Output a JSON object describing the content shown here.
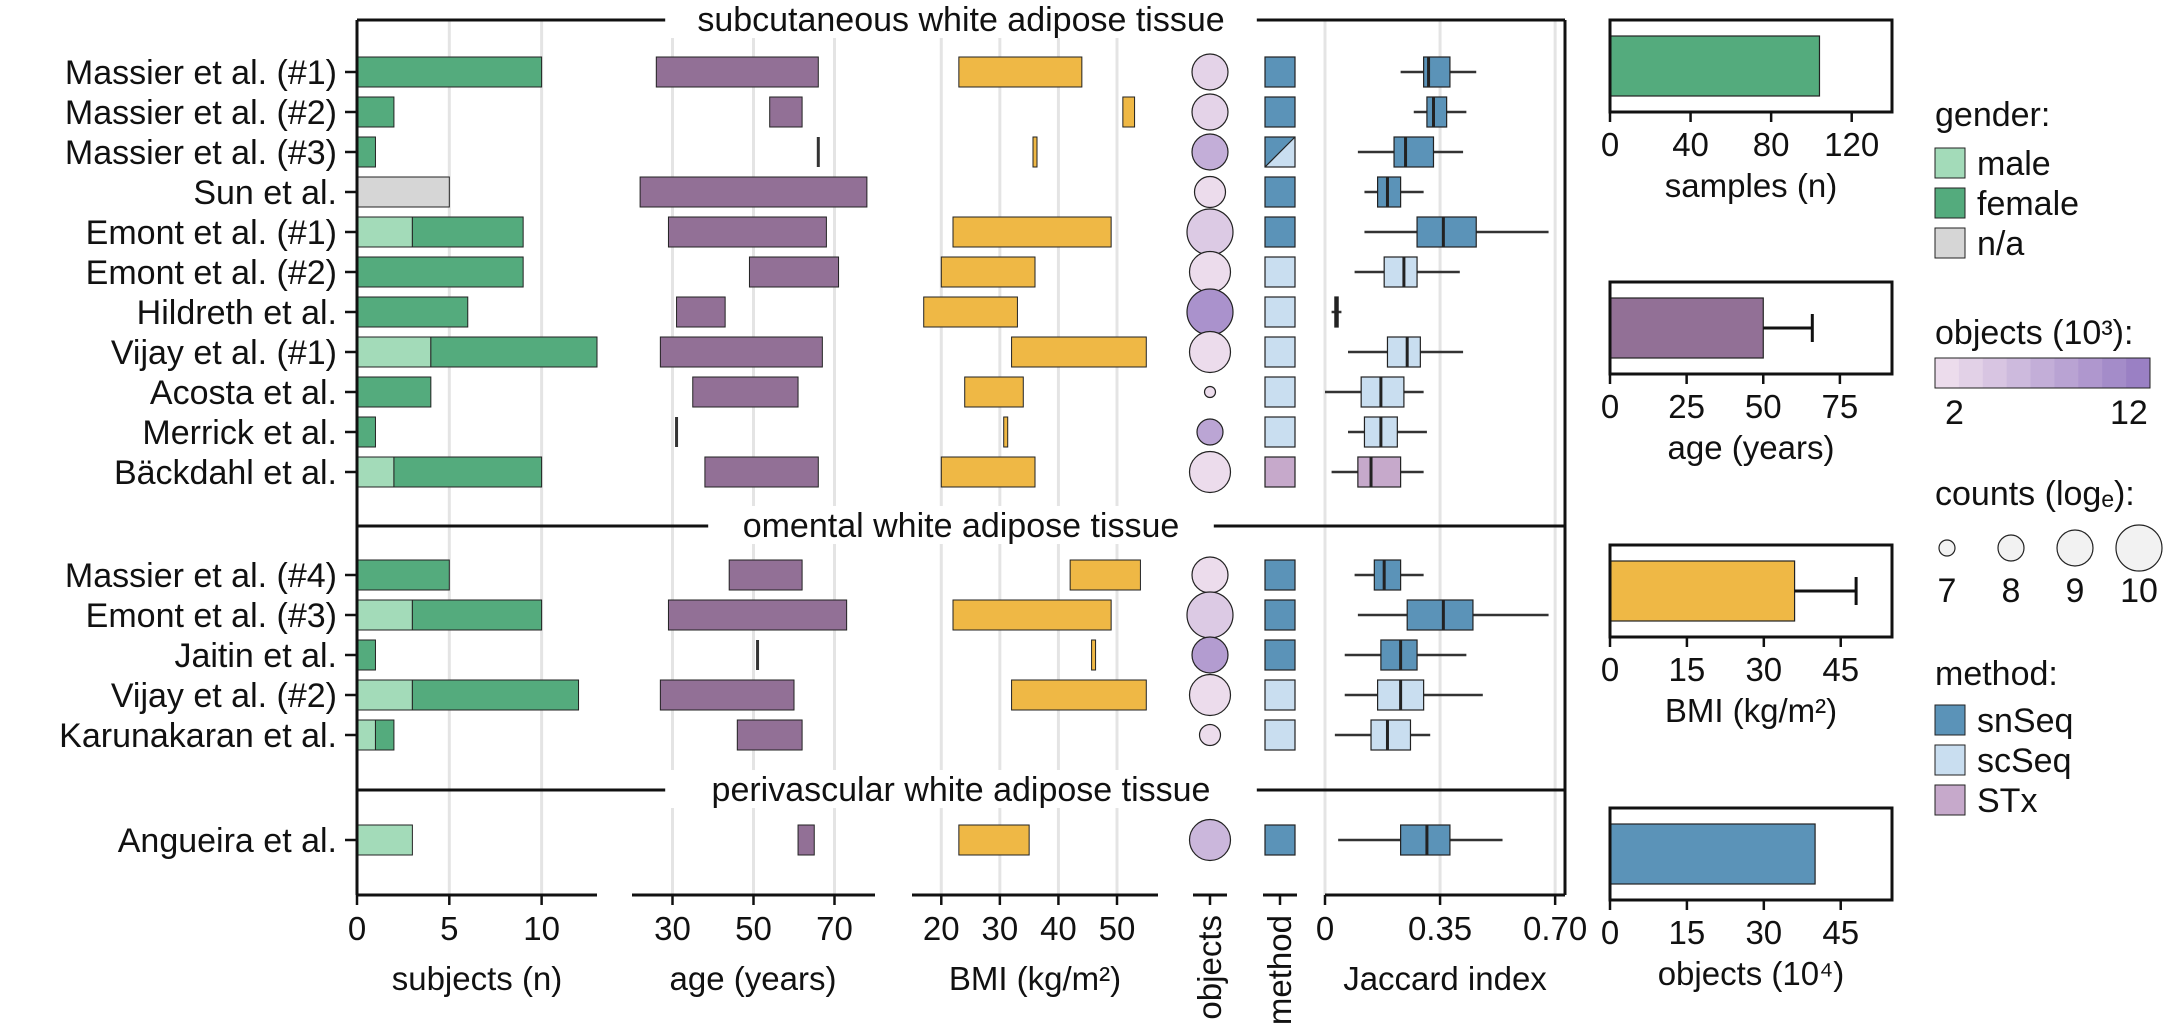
{
  "chart_data": {
    "type": "composite-figure",
    "sections": [
      {
        "title": "subcutaneous white adipose tissue"
      },
      {
        "title": "omental white adipose tissue"
      },
      {
        "title": "perivascular white adipose tissue"
      }
    ],
    "studies": [
      {
        "name": "Massier et al. (#1)",
        "section": 0,
        "male": 0,
        "female": 10,
        "na": 0,
        "age": [
          26,
          66
        ],
        "bmi": [
          23,
          44
        ],
        "objects": 3,
        "counts": 9,
        "method": "snSeq",
        "jaccard": {
          "wl": 0.23,
          "q1": 0.3,
          "med": 0.315,
          "q3": 0.38,
          "wh": 0.46
        }
      },
      {
        "name": "Massier et al. (#2)",
        "section": 0,
        "male": 0,
        "female": 2,
        "na": 0,
        "age": [
          54,
          62
        ],
        "bmi": [
          51,
          53
        ],
        "objects": 3,
        "counts": 9,
        "method": "snSeq",
        "jaccard": {
          "wl": 0.27,
          "q1": 0.31,
          "med": 0.33,
          "q3": 0.37,
          "wh": 0.43
        }
      },
      {
        "name": "Massier et al. (#3)",
        "section": 0,
        "male": 0,
        "female": 1,
        "na": 0,
        "age": [
          66,
          66
        ],
        "bmi": [
          36,
          36
        ],
        "objects": 7,
        "counts": 9,
        "method": "snSeq/scSeq",
        "jaccard": {
          "wl": 0.1,
          "q1": 0.21,
          "med": 0.245,
          "q3": 0.33,
          "wh": 0.42
        }
      },
      {
        "name": "Sun et al.",
        "section": 0,
        "male": 0,
        "female": 0,
        "na": 5,
        "age": [
          22,
          78
        ],
        "bmi": [],
        "objects": 2,
        "counts": 8.5,
        "method": "snSeq",
        "jaccard": {
          "wl": 0.12,
          "q1": 0.16,
          "med": 0.19,
          "q3": 0.23,
          "wh": 0.3
        }
      },
      {
        "name": "Emont et al. (#1)",
        "section": 0,
        "male": 3,
        "female": 6,
        "na": 0,
        "age": [
          29,
          68
        ],
        "bmi": [
          22,
          49
        ],
        "objects": 4,
        "counts": 10,
        "method": "snSeq",
        "jaccard": {
          "wl": 0.12,
          "q1": 0.28,
          "med": 0.36,
          "q3": 0.46,
          "wh": 0.68
        }
      },
      {
        "name": "Emont et al. (#2)",
        "section": 0,
        "male": 0,
        "female": 9,
        "na": 0,
        "age": [
          49,
          71
        ],
        "bmi": [
          20,
          36
        ],
        "objects": 2,
        "counts": 9.5,
        "method": "scSeq",
        "jaccard": {
          "wl": 0.09,
          "q1": 0.18,
          "med": 0.24,
          "q3": 0.28,
          "wh": 0.41
        }
      },
      {
        "name": "Hildreth et al.",
        "section": 0,
        "male": 0,
        "female": 6,
        "na": 0,
        "age": [
          31,
          43
        ],
        "bmi": [
          17,
          33
        ],
        "objects": 10,
        "counts": 10,
        "method": "scSeq",
        "jaccard": {
          "wl": 0.02,
          "q1": 0.03,
          "med": 0.035,
          "q3": 0.04,
          "wh": 0.05
        }
      },
      {
        "name": "Vijay et al. (#1)",
        "section": 0,
        "male": 4,
        "female": 9,
        "na": 0,
        "age": [
          27,
          67
        ],
        "bmi": [
          32,
          55
        ],
        "objects": 2,
        "counts": 9.5,
        "method": "scSeq",
        "jaccard": {
          "wl": 0.07,
          "q1": 0.19,
          "med": 0.25,
          "q3": 0.29,
          "wh": 0.42
        }
      },
      {
        "name": "Acosta et al.",
        "section": 0,
        "male": 0,
        "female": 4,
        "na": 0,
        "age": [
          35,
          61
        ],
        "bmi": [
          24,
          34
        ],
        "objects": 2,
        "counts": 6.5,
        "method": "scSeq",
        "jaccard": {
          "wl": 0.0,
          "q1": 0.11,
          "med": 0.17,
          "q3": 0.24,
          "wh": 0.3
        }
      },
      {
        "name": "Merrick et al.",
        "section": 0,
        "male": 0,
        "female": 1,
        "na": 0,
        "age": [
          31,
          31
        ],
        "bmi": [
          31,
          31
        ],
        "objects": 8,
        "counts": 8,
        "method": "scSeq",
        "jaccard": {
          "wl": 0.07,
          "q1": 0.12,
          "med": 0.17,
          "q3": 0.22,
          "wh": 0.31
        }
      },
      {
        "name": "Bäckdahl et al.",
        "section": 0,
        "male": 2,
        "female": 8,
        "na": 0,
        "age": [
          38,
          66
        ],
        "bmi": [
          20,
          36
        ],
        "objects": 2,
        "counts": 9.5,
        "method": "STx",
        "jaccard": {
          "wl": 0.02,
          "q1": 0.1,
          "med": 0.14,
          "q3": 0.23,
          "wh": 0.3
        }
      },
      {
        "name": "Massier et al. (#4)",
        "section": 1,
        "male": 0,
        "female": 5,
        "na": 0,
        "age": [
          44,
          62
        ],
        "bmi": [
          42,
          54
        ],
        "objects": 2,
        "counts": 9,
        "method": "snSeq",
        "jaccard": {
          "wl": 0.09,
          "q1": 0.15,
          "med": 0.18,
          "q3": 0.23,
          "wh": 0.3
        }
      },
      {
        "name": "Emont et al. (#3)",
        "section": 1,
        "male": 3,
        "female": 7,
        "na": 0,
        "age": [
          29,
          73
        ],
        "bmi": [
          22,
          49
        ],
        "objects": 4,
        "counts": 10,
        "method": "snSeq",
        "jaccard": {
          "wl": 0.1,
          "q1": 0.25,
          "med": 0.36,
          "q3": 0.45,
          "wh": 0.68
        }
      },
      {
        "name": "Jaitin et al.",
        "section": 1,
        "male": 0,
        "female": 1,
        "na": 0,
        "age": [
          51,
          51
        ],
        "bmi": [
          46,
          46
        ],
        "objects": 9,
        "counts": 9,
        "method": "snSeq",
        "jaccard": {
          "wl": 0.06,
          "q1": 0.17,
          "med": 0.23,
          "q3": 0.28,
          "wh": 0.43
        }
      },
      {
        "name": "Vijay et al. (#2)",
        "section": 1,
        "male": 3,
        "female": 9,
        "na": 0,
        "age": [
          27,
          60
        ],
        "bmi": [
          32,
          55
        ],
        "objects": 2,
        "counts": 9.5,
        "method": "scSeq",
        "jaccard": {
          "wl": 0.06,
          "q1": 0.16,
          "med": 0.23,
          "q3": 0.3,
          "wh": 0.48
        }
      },
      {
        "name": "Karunakaran et al.",
        "section": 1,
        "male": 1,
        "female": 1,
        "na": 0,
        "age": [
          46,
          62
        ],
        "bmi": [],
        "objects": 2,
        "counts": 7.5,
        "method": "scSeq",
        "jaccard": {
          "wl": 0.03,
          "q1": 0.14,
          "med": 0.19,
          "q3": 0.26,
          "wh": 0.32
        }
      },
      {
        "name": "Angueira et al.",
        "section": 2,
        "male": 3,
        "female": 0,
        "na": 0,
        "age": [
          61,
          65
        ],
        "bmi": [
          23,
          35
        ],
        "objects": 6,
        "counts": 9.5,
        "method": "snSeq",
        "jaccard": {
          "wl": 0.04,
          "q1": 0.23,
          "med": 0.31,
          "q3": 0.38,
          "wh": 0.54
        }
      }
    ],
    "panels": {
      "subjects": {
        "xlabel": "subjects (n)",
        "ticks": [
          "0",
          "5",
          "10"
        ],
        "xlim": [
          0,
          13
        ]
      },
      "age": {
        "xlabel": "age (years)",
        "ticks": [
          "30",
          "50",
          "70"
        ],
        "xlim": [
          20,
          80
        ]
      },
      "bmi": {
        "xlabel": "BMI (kg/m²)",
        "ticks": [
          "20",
          "30",
          "40",
          "50"
        ],
        "xlim": [
          15,
          57
        ]
      },
      "objects": {
        "xlabel": "objects"
      },
      "method": {
        "xlabel": "method"
      },
      "jaccard": {
        "xlabel": "Jaccard index",
        "ticks": [
          "0",
          "0.35",
          "0.70"
        ],
        "xlim": [
          0,
          0.73
        ]
      }
    },
    "summary": [
      {
        "key": "samples",
        "xlabel": "samples (n)",
        "value": 104,
        "error": null,
        "ticks": [
          "0",
          "40",
          "80",
          "120"
        ],
        "xlim": [
          0,
          140
        ]
      },
      {
        "key": "age",
        "xlabel": "age (years)",
        "value": 50,
        "error": 66,
        "ticks": [
          "0",
          "25",
          "50",
          "75"
        ],
        "xlim": [
          0,
          92
        ]
      },
      {
        "key": "bmi",
        "xlabel": "BMI (kg/m²)",
        "value": 36,
        "error": 48,
        "ticks": [
          "0",
          "15",
          "30",
          "45"
        ],
        "xlim": [
          0,
          55
        ]
      },
      {
        "key": "objects",
        "xlabel": "objects (10⁴)",
        "value": 40,
        "error": null,
        "ticks": [
          "0",
          "15",
          "30",
          "45"
        ],
        "xlim": [
          0,
          55
        ]
      }
    ],
    "legend": {
      "gender_title": "gender:",
      "gender": [
        {
          "label": "male",
          "color": "#a3dbb9"
        },
        {
          "label": "female",
          "color": "#54ab7d"
        },
        {
          "label": "n/a",
          "color": "#d6d6d6"
        }
      ],
      "objects_title": "objects (10³):",
      "objects_min": "2",
      "objects_max": "12",
      "counts_title": "counts (logₑ):",
      "counts_values": [
        "7",
        "8",
        "9",
        "10"
      ],
      "method_title": "method:",
      "methods": [
        {
          "label": "snSeq",
          "color": "#5b93b8"
        },
        {
          "label": "scSeq",
          "color": "#c9def0"
        },
        {
          "label": "STx",
          "color": "#c6a9cb"
        }
      ]
    },
    "colors": {
      "male": "#a3dbb9",
      "female": "#54ab7d",
      "na": "#d6d6d6",
      "age": "#927096",
      "bmi": "#efb845",
      "objects_lo": "#ecdcec",
      "objects_hi": "#9a80c4",
      "snSeq": "#5b93b8",
      "scSeq": "#c9def0",
      "STx": "#c6a9cb",
      "summary_samples": "#54ab7d",
      "summary_age": "#927096",
      "summary_bmi": "#efb845",
      "summary_objects": "#5b93b8"
    }
  }
}
